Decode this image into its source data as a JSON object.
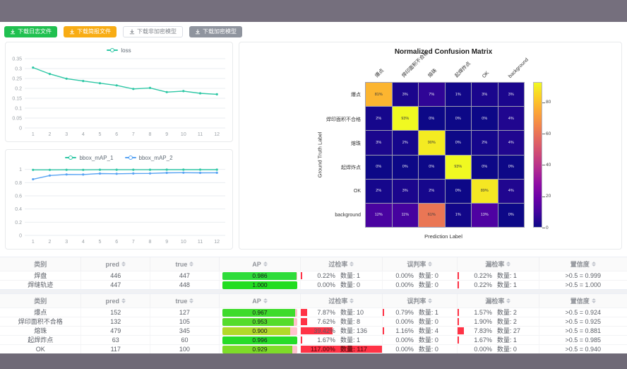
{
  "colors": {
    "topbar": "#756f7d",
    "bottombar": "#6f6a77",
    "btn_green": "#20c050",
    "btn_orange": "#f8ac14",
    "btn_gray": "#8f949e",
    "rate_bar": "#ff3346",
    "ap_track": "#ffc2cb",
    "series_teal": "#2ec7a5",
    "series_blue": "#57a3f3"
  },
  "toolbar": {
    "buttons": [
      {
        "label": "下载日志文件",
        "style": "green"
      },
      {
        "label": "下载简报文件",
        "style": "orange"
      },
      {
        "label": "下载非加密模型",
        "style": "plain"
      },
      {
        "label": "下载加密模型",
        "style": "gray"
      }
    ]
  },
  "chart_data": [
    {
      "type": "line",
      "title": "",
      "legend_position": "top",
      "grid": true,
      "x": [
        "1",
        "2",
        "3",
        "4",
        "5",
        "6",
        "7",
        "8",
        "9",
        "10",
        "11",
        "12"
      ],
      "series": [
        {
          "name": "loss",
          "color": "#2ec7a5",
          "values": [
            0.305,
            0.273,
            0.249,
            0.237,
            0.226,
            0.215,
            0.197,
            0.202,
            0.181,
            0.186,
            0.175,
            0.17
          ]
        }
      ],
      "yticks": [
        0,
        0.05,
        0.1,
        0.15,
        0.2,
        0.25,
        0.3,
        0.35
      ],
      "ylim": [
        0,
        0.35
      ],
      "xlabel": "",
      "ylabel": ""
    },
    {
      "type": "line",
      "title": "",
      "legend_position": "top",
      "grid": true,
      "x": [
        "1",
        "2",
        "3",
        "4",
        "5",
        "6",
        "7",
        "8",
        "9",
        "10",
        "11",
        "12"
      ],
      "series": [
        {
          "name": "bbox_mAP_1",
          "color": "#2ec7a5",
          "values": [
            0.993,
            0.993,
            0.994,
            0.993,
            0.995,
            0.995,
            0.995,
            0.995,
            0.996,
            0.996,
            0.996,
            0.996
          ]
        },
        {
          "name": "bbox_mAP_2",
          "color": "#57a3f3",
          "values": [
            0.851,
            0.908,
            0.924,
            0.922,
            0.938,
            0.934,
            0.939,
            0.94,
            0.948,
            0.95,
            0.948,
            0.949
          ]
        }
      ],
      "yticks": [
        0,
        0.2,
        0.4,
        0.6,
        0.8,
        1
      ],
      "ylim": [
        0,
        1.05
      ],
      "xlabel": "",
      "ylabel": ""
    },
    {
      "type": "heatmap",
      "title": "Normalized Confusion Matrix",
      "xlabel": "Prediction Label",
      "ylabel": "Ground Truth Label",
      "labels": [
        "爆点",
        "焊印面积不合格",
        "熔珠",
        "起焊炸点",
        "OK",
        "background"
      ],
      "values_unit": "%",
      "values": [
        [
          81,
          3,
          7,
          1,
          3,
          3
        ],
        [
          2,
          93,
          0,
          0,
          0,
          4
        ],
        [
          3,
          2,
          90,
          0,
          2,
          4
        ],
        [
          0,
          0,
          0,
          93,
          0,
          0
        ],
        [
          2,
          3,
          2,
          0,
          89,
          4
        ],
        [
          12,
          11,
          61,
          1,
          13,
          0
        ]
      ],
      "cell_colors": [
        [
          "#fcb530",
          "#1b068d",
          "#2f0596",
          "#120789",
          "#1b068d",
          "#1b068d"
        ],
        [
          "#16078c",
          "#f0f921",
          "#0d0887",
          "#0d0887",
          "#0d0887",
          "#20068f"
        ],
        [
          "#1b068d",
          "#16078c",
          "#f4eb22",
          "#0d0887",
          "#16078c",
          "#20068f"
        ],
        [
          "#0d0887",
          "#0d0887",
          "#0d0887",
          "#f0f921",
          "#0d0887",
          "#0d0887"
        ],
        [
          "#16078c",
          "#1b068d",
          "#16078c",
          "#0d0887",
          "#f5e723",
          "#20068f"
        ],
        [
          "#4903a0",
          "#46039f",
          "#ea7655",
          "#120789",
          "#4e02a2",
          "#0d0887"
        ]
      ],
      "colorbar": {
        "ticks": [
          0,
          20,
          40,
          60,
          80
        ],
        "vmax": 93,
        "colormap": "plasma"
      }
    }
  ],
  "tables": [
    {
      "headers": [
        {
          "label": "类别",
          "sortable": false
        },
        {
          "label": "pred",
          "sortable": true
        },
        {
          "label": "true",
          "sortable": true
        },
        {
          "label": "AP",
          "sortable": true
        },
        {
          "label": "过检率",
          "sortable": true
        },
        {
          "label": "误判率",
          "sortable": true
        },
        {
          "label": "漏检率",
          "sortable": true
        },
        {
          "label": "置信度",
          "sortable": true
        }
      ],
      "rows": [
        {
          "cls": "焊盘",
          "pred": "446",
          "true": "447",
          "ap": "0.986",
          "ap_color": "#2edc3a",
          "rates": [
            {
              "pct": "0.22%",
              "count": "数量: 1",
              "ratio": 0.0022
            },
            {
              "pct": "0.00%",
              "count": "数量: 0",
              "ratio": 0
            },
            {
              "pct": "0.22%",
              "count": "数量: 1",
              "ratio": 0.0022
            }
          ],
          "conf": ">0.5 = 0.999"
        },
        {
          "cls": "焊缝轨迹",
          "pred": "447",
          "true": "448",
          "ap": "1.000",
          "ap_color": "#21dd21",
          "rates": [
            {
              "pct": "0.00%",
              "count": "数量: 0",
              "ratio": 0
            },
            {
              "pct": "0.00%",
              "count": "数量: 0",
              "ratio": 0
            },
            {
              "pct": "0.22%",
              "count": "数量: 1",
              "ratio": 0.0022
            }
          ],
          "conf": ">0.5 = 1.000"
        }
      ]
    },
    {
      "headers": [
        {
          "label": "类别",
          "sortable": false
        },
        {
          "label": "pred",
          "sortable": true
        },
        {
          "label": "true",
          "sortable": true
        },
        {
          "label": "AP",
          "sortable": true
        },
        {
          "label": "过检率",
          "sortable": true
        },
        {
          "label": "误判率",
          "sortable": true
        },
        {
          "label": "漏检率",
          "sortable": true
        },
        {
          "label": "置信度",
          "sortable": true
        }
      ],
      "rows": [
        {
          "cls": "爆点",
          "pred": "152",
          "true": "127",
          "ap": "0.967",
          "ap_color": "#3edb2c",
          "rates": [
            {
              "pct": "7.87%",
              "count": "数量: 10",
              "ratio": 0.0787
            },
            {
              "pct": "0.79%",
              "count": "数量: 1",
              "ratio": 0.0079
            },
            {
              "pct": "1.57%",
              "count": "数量: 2",
              "ratio": 0.0157
            }
          ],
          "conf": ">0.5 = 0.924"
        },
        {
          "cls": "焊印面积不合格",
          "pred": "132",
          "true": "105",
          "ap": "0.953",
          "ap_color": "#55dc2b",
          "rates": [
            {
              "pct": "7.62%",
              "count": "数量: 8",
              "ratio": 0.0762
            },
            {
              "pct": "0.00%",
              "count": "数量: 0",
              "ratio": 0
            },
            {
              "pct": "1.90%",
              "count": "数量: 2",
              "ratio": 0.019
            }
          ],
          "conf": ">0.5 = 0.925"
        },
        {
          "cls": "熔珠",
          "pred": "479",
          "true": "345",
          "ap": "0.900",
          "ap_color": "#b2d92a",
          "rates": [
            {
              "pct": "39.42%",
              "count": "数量: 136",
              "ratio": 0.3942
            },
            {
              "pct": "1.16%",
              "count": "数量: 4",
              "ratio": 0.0116
            },
            {
              "pct": "7.83%",
              "count": "数量: 27",
              "ratio": 0.0783
            }
          ],
          "conf": ">0.5 = 0.881"
        },
        {
          "cls": "起焊炸点",
          "pred": "63",
          "true": "60",
          "ap": "0.996",
          "ap_color": "#26dc29",
          "rates": [
            {
              "pct": "1.67%",
              "count": "数量: 1",
              "ratio": 0.0167
            },
            {
              "pct": "0.00%",
              "count": "数量: 0",
              "ratio": 0
            },
            {
              "pct": "1.67%",
              "count": "数量: 1",
              "ratio": 0.0167
            }
          ],
          "conf": ">0.5 = 0.985"
        },
        {
          "cls": "OK",
          "pred": "117",
          "true": "100",
          "ap": "0.929",
          "ap_color": "#7edc29",
          "rates": [
            {
              "pct": "117.00%",
              "count": "数量: 117",
              "ratio": 1.17
            },
            {
              "pct": "0.00%",
              "count": "数量: 0",
              "ratio": 0
            },
            {
              "pct": "0.00%",
              "count": "数量: 0",
              "ratio": 0
            }
          ],
          "conf": ">0.5 = 0.940"
        }
      ]
    }
  ]
}
